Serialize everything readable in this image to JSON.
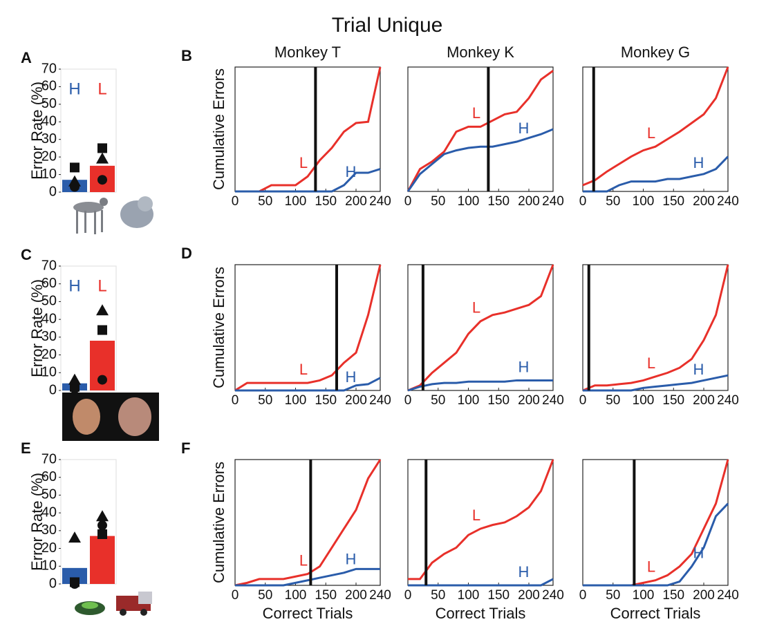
{
  "title": "Trial Unique",
  "chart_data": [
    {
      "type": "bar",
      "panel": "A",
      "ylabel": "Error Rate (%)",
      "categories": [
        "H",
        "L"
      ],
      "values": [
        7,
        15
      ],
      "colors": [
        "#2a5caa",
        "#e8302a"
      ],
      "points": [
        {
          "marker": "square",
          "values": [
            14,
            25
          ]
        },
        {
          "marker": "triangle",
          "values": [
            6,
            19
          ]
        },
        {
          "marker": "circle",
          "values": [
            3,
            7
          ]
        }
      ],
      "ylim": [
        0,
        70
      ],
      "yticks": [
        0,
        10,
        20,
        30,
        40,
        50,
        60,
        70
      ]
    },
    {
      "type": "line",
      "panel": "B",
      "title": "Monkey T",
      "ylabel": "Cumulative Errors",
      "x": [
        0,
        20,
        40,
        60,
        80,
        100,
        120,
        140,
        160,
        180,
        200,
        220,
        240
      ],
      "series": [
        {
          "name": "L",
          "color": "#e8302a",
          "values": [
            0,
            0,
            0,
            5,
            5,
            5,
            12,
            25,
            35,
            48,
            55,
            56,
            100
          ]
        },
        {
          "name": "H",
          "color": "#2a5caa",
          "values": [
            0,
            0,
            0,
            0,
            0,
            0,
            0,
            0,
            0,
            5,
            15,
            15,
            18
          ]
        }
      ],
      "vline": 133,
      "xlim": [
        0,
        240
      ],
      "ylim": [
        0,
        100
      ],
      "xticks": [
        0,
        50,
        100,
        150,
        200,
        240
      ]
    },
    {
      "type": "line",
      "title": "Monkey K",
      "x": [
        0,
        20,
        40,
        60,
        80,
        100,
        120,
        140,
        160,
        180,
        200,
        220,
        240
      ],
      "series": [
        {
          "name": "L",
          "color": "#e8302a",
          "values": [
            0,
            18,
            24,
            32,
            48,
            52,
            52,
            57,
            62,
            64,
            75,
            90,
            97
          ]
        },
        {
          "name": "H",
          "color": "#2a5caa",
          "values": [
            0,
            14,
            22,
            30,
            33,
            35,
            36,
            36,
            38,
            40,
            43,
            46,
            50
          ]
        }
      ],
      "vline": 133,
      "xlim": [
        0,
        240
      ],
      "ylim": [
        0,
        100
      ],
      "xticks": [
        0,
        50,
        100,
        150,
        200,
        240
      ]
    },
    {
      "type": "line",
      "title": "Monkey G",
      "x": [
        0,
        20,
        40,
        60,
        80,
        100,
        120,
        140,
        160,
        180,
        200,
        220,
        240
      ],
      "series": [
        {
          "name": "L",
          "color": "#e8302a",
          "values": [
            5,
            9,
            16,
            22,
            28,
            33,
            36,
            42,
            48,
            55,
            62,
            75,
            100
          ]
        },
        {
          "name": "H",
          "color": "#2a5caa",
          "values": [
            0,
            0,
            0,
            5,
            8,
            8,
            8,
            10,
            10,
            12,
            14,
            18,
            28
          ]
        }
      ],
      "vline": 18,
      "xlim": [
        0,
        240
      ],
      "ylim": [
        0,
        100
      ],
      "xticks": [
        0,
        50,
        100,
        150,
        200,
        240
      ]
    },
    {
      "type": "bar",
      "panel": "C",
      "ylabel": "Error Rate (%)",
      "categories": [
        "H",
        "L"
      ],
      "values": [
        4,
        28
      ],
      "colors": [
        "#2a5caa",
        "#e8302a"
      ],
      "points": [
        {
          "marker": "square",
          "values": [
            2,
            34
          ]
        },
        {
          "marker": "triangle",
          "values": [
            6,
            45
          ]
        },
        {
          "marker": "circle",
          "values": [
            1,
            6
          ]
        }
      ],
      "ylim": [
        0,
        70
      ],
      "yticks": [
        0,
        10,
        20,
        30,
        40,
        50,
        60,
        70
      ]
    },
    {
      "type": "line",
      "panel": "D",
      "ylabel": "Cumulative Errors",
      "x": [
        0,
        20,
        40,
        60,
        80,
        100,
        120,
        140,
        160,
        180,
        200,
        220,
        240
      ],
      "series": [
        {
          "name": "L",
          "color": "#e8302a",
          "values": [
            0,
            6,
            6,
            6,
            6,
            6,
            6,
            8,
            12,
            22,
            30,
            60,
            100
          ]
        },
        {
          "name": "H",
          "color": "#2a5caa",
          "values": [
            0,
            0,
            0,
            0,
            0,
            0,
            0,
            0,
            0,
            0,
            4,
            5,
            10
          ]
        }
      ],
      "vline": 168,
      "xlim": [
        0,
        240
      ],
      "ylim": [
        0,
        100
      ],
      "xticks": [
        0,
        50,
        100,
        150,
        200,
        240
      ]
    },
    {
      "type": "line",
      "x": [
        0,
        20,
        40,
        60,
        80,
        100,
        120,
        140,
        160,
        180,
        200,
        220,
        240
      ],
      "series": [
        {
          "name": "L",
          "color": "#e8302a",
          "values": [
            0,
            4,
            14,
            22,
            30,
            45,
            55,
            60,
            62,
            65,
            68,
            75,
            100
          ]
        },
        {
          "name": "H",
          "color": "#2a5caa",
          "values": [
            0,
            3,
            5,
            6,
            6,
            7,
            7,
            7,
            7,
            8,
            8,
            8,
            8
          ]
        }
      ],
      "vline": 25,
      "xlim": [
        0,
        240
      ],
      "ylim": [
        0,
        100
      ],
      "xticks": [
        0,
        50,
        100,
        150,
        200,
        240
      ]
    },
    {
      "type": "line",
      "x": [
        0,
        20,
        40,
        60,
        80,
        100,
        120,
        140,
        160,
        180,
        200,
        220,
        240
      ],
      "series": [
        {
          "name": "L",
          "color": "#e8302a",
          "values": [
            0,
            4,
            4,
            5,
            6,
            8,
            11,
            14,
            18,
            25,
            40,
            60,
            100
          ]
        },
        {
          "name": "H",
          "color": "#2a5caa",
          "values": [
            0,
            0,
            0,
            0,
            0,
            2,
            3,
            4,
            5,
            6,
            8,
            10,
            12
          ]
        }
      ],
      "vline": 10,
      "xlim": [
        0,
        240
      ],
      "ylim": [
        0,
        100
      ],
      "xticks": [
        0,
        50,
        100,
        150,
        200,
        240
      ]
    },
    {
      "type": "bar",
      "panel": "E",
      "ylabel": "Error Rate (%)",
      "categories": [
        null,
        null
      ],
      "values": [
        9,
        27
      ],
      "colors": [
        "#2a5caa",
        "#e8302a"
      ],
      "points": [
        {
          "marker": "square",
          "values": [
            1,
            28
          ]
        },
        {
          "marker": "triangle",
          "values": [
            26,
            38
          ]
        },
        {
          "marker": "circle",
          "values": [
            0,
            33
          ]
        }
      ],
      "ylim": [
        0,
        70
      ],
      "yticks": [
        0,
        10,
        20,
        30,
        40,
        50,
        60,
        70
      ]
    },
    {
      "type": "line",
      "panel": "F",
      "ylabel": "Cumulative Errors",
      "xlabel": "Correct Trials",
      "x": [
        0,
        20,
        40,
        60,
        80,
        100,
        120,
        140,
        160,
        180,
        200,
        220,
        240
      ],
      "series": [
        {
          "name": "L",
          "color": "#e8302a",
          "values": [
            0,
            2,
            5,
            5,
            5,
            7,
            9,
            15,
            30,
            45,
            60,
            85,
            100
          ]
        },
        {
          "name": "H",
          "color": "#2a5caa",
          "values": [
            0,
            0,
            0,
            0,
            0,
            2,
            4,
            6,
            8,
            10,
            13,
            13,
            13
          ]
        }
      ],
      "vline": 125,
      "xlim": [
        0,
        240
      ],
      "ylim": [
        0,
        100
      ],
      "xticks": [
        0,
        50,
        100,
        150,
        200,
        240
      ]
    },
    {
      "type": "line",
      "xlabel": "Correct Trials",
      "x": [
        0,
        20,
        40,
        60,
        80,
        100,
        120,
        140,
        160,
        180,
        200,
        220,
        240
      ],
      "series": [
        {
          "name": "L",
          "color": "#e8302a",
          "values": [
            5,
            5,
            18,
            25,
            30,
            40,
            45,
            48,
            50,
            55,
            62,
            75,
            100
          ]
        },
        {
          "name": "H",
          "color": "#2a5caa",
          "values": [
            0,
            0,
            0,
            0,
            0,
            0,
            0,
            0,
            0,
            0,
            0,
            0,
            5
          ]
        }
      ],
      "vline": 30,
      "xlim": [
        0,
        240
      ],
      "ylim": [
        0,
        100
      ],
      "xticks": [
        0,
        50,
        100,
        150,
        200,
        240
      ]
    },
    {
      "type": "line",
      "xlabel": "Correct Trials",
      "x": [
        0,
        20,
        40,
        60,
        80,
        100,
        120,
        140,
        160,
        180,
        200,
        220,
        240
      ],
      "series": [
        {
          "name": "L",
          "color": "#e8302a",
          "values": [
            0,
            0,
            0,
            0,
            0,
            2,
            4,
            8,
            15,
            25,
            45,
            65,
            100
          ]
        },
        {
          "name": "H",
          "color": "#2a5caa",
          "values": [
            0,
            0,
            0,
            0,
            0,
            0,
            0,
            0,
            3,
            15,
            30,
            55,
            65
          ]
        }
      ],
      "vline": 85,
      "xlim": [
        0,
        240
      ],
      "ylim": [
        0,
        100
      ],
      "xticks": [
        0,
        50,
        100,
        150,
        200,
        240
      ]
    }
  ]
}
